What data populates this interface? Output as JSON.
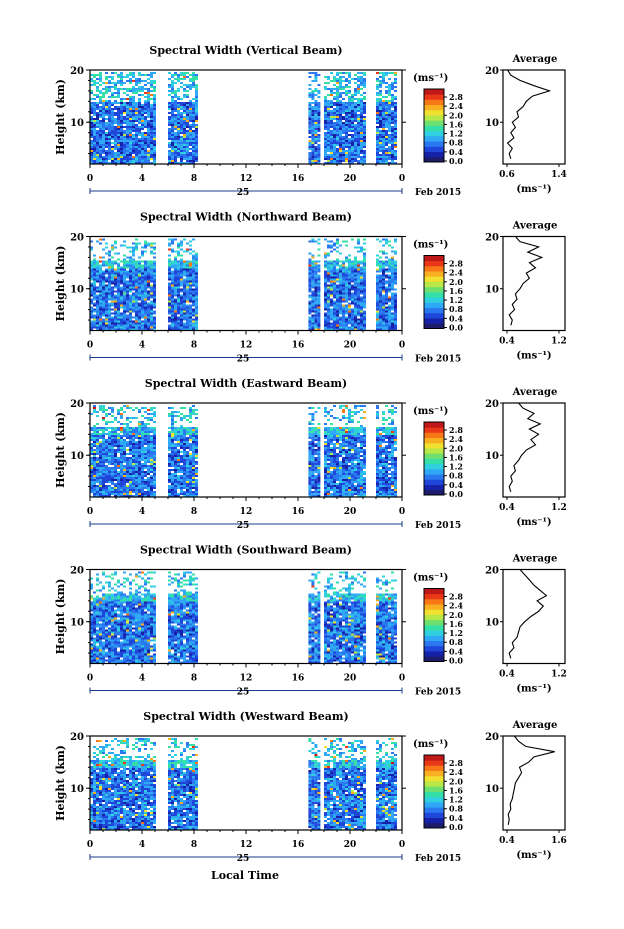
{
  "footer": {
    "xlabel": "Local Time"
  },
  "colorbar": {
    "unit": "(ms⁻¹)",
    "ticks": [
      "2.8",
      "2.4",
      "2.0",
      "1.6",
      "1.2",
      "0.8",
      "0.4",
      "0.0"
    ],
    "colors": [
      "#1c1c6a",
      "#1522a8",
      "#1e46d8",
      "#2a78f0",
      "#2fa8f5",
      "#30d0e0",
      "#34e0a8",
      "#6ee070",
      "#b8e848",
      "#f0e030",
      "#f8b020",
      "#f87818",
      "#e83818",
      "#c01818"
    ]
  },
  "chart_data": [
    {
      "type": "heatmap",
      "title": "Spectral Width (Vertical Beam)",
      "ylabel": "Height (km)",
      "ylim": [
        2,
        20
      ],
      "yticks": [
        "20",
        "10"
      ],
      "xlim": [
        0,
        24
      ],
      "xticks": [
        "0",
        "4",
        "8",
        "12",
        "16",
        "20",
        "0"
      ],
      "date_label": "25",
      "month_label": "Feb 2015",
      "data_intervals": [
        [
          0,
          4.9
        ],
        [
          6,
          8.2
        ],
        [
          16.8,
          17.5
        ],
        [
          18,
          21.2
        ],
        [
          22,
          23.6
        ]
      ],
      "average": {
        "title": "Average",
        "xlabel": "(ms⁻¹)",
        "xlim": [
          0.6,
          1.4
        ],
        "xticks": [
          "0.6",
          "1.4"
        ],
        "yticks": [
          "20",
          "10"
        ],
        "heights": [
          3,
          4,
          5,
          6,
          7,
          8,
          9,
          10,
          11,
          12,
          13,
          14,
          15,
          16,
          17,
          18,
          19,
          20
        ],
        "values": [
          0.7,
          0.68,
          0.72,
          0.66,
          0.74,
          0.7,
          0.76,
          0.72,
          0.8,
          0.78,
          0.86,
          0.9,
          0.98,
          1.2,
          1.0,
          0.82,
          0.7,
          0.66
        ]
      }
    },
    {
      "type": "heatmap",
      "title": "Spectral Width (Northward Beam)",
      "ylabel": "Height (km)",
      "ylim": [
        2,
        20
      ],
      "yticks": [
        "20",
        "10"
      ],
      "xlim": [
        0,
        24
      ],
      "xticks": [
        "0",
        "4",
        "8",
        "12",
        "16",
        "20",
        "0"
      ],
      "date_label": "25",
      "month_label": "Feb 2015",
      "data_intervals": [
        [
          0,
          4.9
        ],
        [
          6,
          8.2
        ],
        [
          16.8,
          17.5
        ],
        [
          18,
          21.2
        ],
        [
          22,
          23.6
        ]
      ],
      "average": {
        "title": "Average",
        "xlabel": "(ms⁻¹)",
        "xlim": [
          0.4,
          1.2
        ],
        "xticks": [
          "0.4",
          "1.2"
        ],
        "yticks": [
          "20",
          "10"
        ],
        "heights": [
          3,
          4,
          5,
          6,
          7,
          8,
          9,
          10,
          11,
          12,
          13,
          14,
          15,
          16,
          17,
          18,
          19,
          20
        ],
        "values": [
          0.5,
          0.52,
          0.48,
          0.55,
          0.52,
          0.58,
          0.56,
          0.62,
          0.66,
          0.74,
          0.7,
          0.82,
          0.74,
          0.9,
          0.72,
          0.86,
          0.62,
          0.56
        ]
      }
    },
    {
      "type": "heatmap",
      "title": "Spectral Width (Eastward Beam)",
      "ylabel": "Height (km)",
      "ylim": [
        2,
        20
      ],
      "yticks": [
        "20",
        "10"
      ],
      "xlim": [
        0,
        24
      ],
      "xticks": [
        "0",
        "4",
        "8",
        "12",
        "16",
        "20",
        "0"
      ],
      "date_label": "25",
      "month_label": "Feb 2015",
      "data_intervals": [
        [
          0,
          4.9
        ],
        [
          6,
          8.2
        ],
        [
          16.8,
          17.5
        ],
        [
          18,
          21.2
        ],
        [
          22,
          23.6
        ]
      ],
      "average": {
        "title": "Average",
        "xlabel": "(ms⁻¹)",
        "xlim": [
          0.4,
          1.2
        ],
        "xticks": [
          "0.4",
          "1.2"
        ],
        "yticks": [
          "20",
          "10"
        ],
        "heights": [
          3,
          4,
          5,
          6,
          7,
          8,
          9,
          10,
          11,
          12,
          13,
          14,
          15,
          16,
          17,
          18,
          19,
          20
        ],
        "values": [
          0.5,
          0.48,
          0.52,
          0.5,
          0.56,
          0.54,
          0.6,
          0.64,
          0.7,
          0.82,
          0.76,
          0.86,
          0.74,
          0.88,
          0.72,
          0.8,
          0.66,
          0.6
        ]
      }
    },
    {
      "type": "heatmap",
      "title": "Spectral Width (Southward Beam)",
      "ylabel": "Height (km)",
      "ylim": [
        2,
        20
      ],
      "yticks": [
        "20",
        "10"
      ],
      "xlim": [
        0,
        24
      ],
      "xticks": [
        "0",
        "4",
        "8",
        "12",
        "16",
        "20",
        "0"
      ],
      "date_label": "25",
      "month_label": "Feb 2015",
      "data_intervals": [
        [
          0,
          4.9
        ],
        [
          6,
          8.2
        ],
        [
          16.8,
          17.5
        ],
        [
          18,
          21.2
        ],
        [
          22,
          23.6
        ]
      ],
      "average": {
        "title": "Average",
        "xlabel": "(ms⁻¹)",
        "xlim": [
          0.4,
          1.2
        ],
        "xticks": [
          "0.4",
          "1.2"
        ],
        "yticks": [
          "20",
          "10"
        ],
        "heights": [
          3,
          4,
          5,
          6,
          7,
          8,
          9,
          10,
          11,
          12,
          13,
          14,
          15,
          16,
          17,
          18,
          19,
          20
        ],
        "values": [
          0.5,
          0.48,
          0.54,
          0.52,
          0.58,
          0.6,
          0.62,
          0.68,
          0.76,
          0.86,
          0.92,
          0.84,
          0.96,
          0.88,
          0.8,
          0.74,
          0.68,
          0.62
        ]
      }
    },
    {
      "type": "heatmap",
      "title": "Spectral Width (Westward Beam)",
      "ylabel": "Height (km)",
      "ylim": [
        2,
        20
      ],
      "yticks": [
        "20",
        "10"
      ],
      "xlim": [
        0,
        24
      ],
      "xticks": [
        "0",
        "4",
        "8",
        "12",
        "16",
        "20",
        "0"
      ],
      "date_label": "25",
      "month_label": "Feb 2015",
      "data_intervals": [
        [
          0,
          4.9
        ],
        [
          6,
          8.2
        ],
        [
          16.8,
          17.5
        ],
        [
          18,
          21.2
        ],
        [
          22,
          23.6
        ]
      ],
      "average": {
        "title": "Average",
        "xlabel": "(ms⁻¹)",
        "xlim": [
          0.4,
          1.6
        ],
        "xticks": [
          "0.4",
          "1.6"
        ],
        "yticks": [
          "20",
          "10"
        ],
        "heights": [
          3,
          4,
          5,
          6,
          7,
          8,
          9,
          10,
          11,
          12,
          13,
          14,
          15,
          16,
          17,
          18,
          19,
          20
        ],
        "values": [
          0.5,
          0.52,
          0.5,
          0.55,
          0.54,
          0.58,
          0.6,
          0.62,
          0.64,
          0.7,
          0.76,
          0.72,
          0.9,
          1.0,
          1.4,
          0.84,
          0.7,
          0.62
        ]
      }
    }
  ]
}
